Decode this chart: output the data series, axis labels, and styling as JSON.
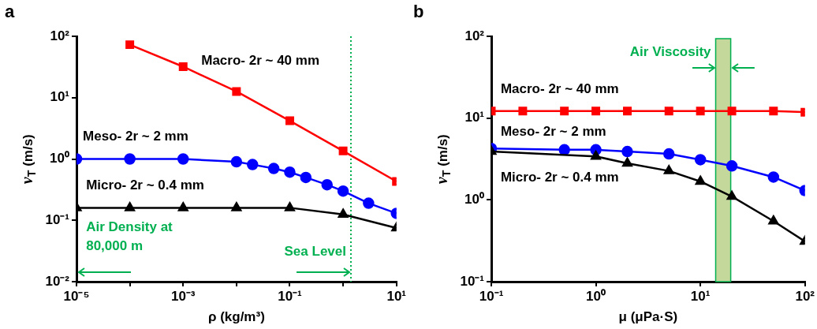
{
  "chart_data": [
    {
      "type": "line",
      "title": "a",
      "xlabel": "ρ (kg/m³)",
      "ylabel": "v$_{T}$ (m/s)",
      "log": "xy",
      "grid": false,
      "xlim": [
        1e-05,
        10
      ],
      "ylim": [
        0.01,
        100
      ],
      "xticks": [
        {
          "value": 1e-05,
          "label": "10⁻⁵"
        },
        {
          "value": 0.0001,
          "label": null
        },
        {
          "value": 0.001,
          "label": "10⁻³"
        },
        {
          "value": 0.01,
          "label": null
        },
        {
          "value": 0.1,
          "label": "10⁻¹"
        },
        {
          "value": 1,
          "label": null
        },
        {
          "value": 10,
          "label": "10¹"
        }
      ],
      "yticks": [
        {
          "value": 0.01,
          "label": "10⁻²"
        },
        {
          "value": 0.1,
          "label": "10⁻¹"
        },
        {
          "value": 1,
          "label": "10⁰"
        },
        {
          "value": 10,
          "label": "10¹"
        },
        {
          "value": 100,
          "label": "10²"
        }
      ],
      "series": [
        {
          "name": "Macro- 2r ~ 40 mm",
          "color": "#ff0000",
          "marker": "square",
          "x": [
            0.0001,
            0.001,
            0.01,
            0.1,
            1,
            10
          ],
          "values": [
            73,
            32,
            12.6,
            4.2,
            1.35,
            0.43
          ]
        },
        {
          "name": "Meso- 2r ~ 2 mm",
          "color": "#0000ff",
          "marker": "circle",
          "x": [
            1e-05,
            0.0001,
            0.001,
            0.01,
            0.02,
            0.05,
            0.1,
            0.2,
            0.5,
            1,
            3,
            10
          ],
          "values": [
            1.0,
            1.0,
            1.0,
            0.9,
            0.81,
            0.7,
            0.61,
            0.5,
            0.38,
            0.3,
            0.19,
            0.13
          ]
        },
        {
          "name": "Micro- 2r ~ 0.4 mm",
          "color": "#000000",
          "marker": "triangle",
          "x": [
            1e-05,
            0.0001,
            0.001,
            0.01,
            0.1,
            1,
            10
          ],
          "values": [
            0.16,
            0.16,
            0.16,
            0.16,
            0.16,
            0.125,
            0.075
          ]
        }
      ],
      "ref_lines": [
        {
          "axis": "x",
          "value": 1.4,
          "label": "Sea Level",
          "color": "#00b050",
          "line_style": "dotted"
        }
      ],
      "annotations": [
        "Air Density at\n80,000 m"
      ]
    },
    {
      "type": "line",
      "title": "b",
      "xlabel": "μ (μPa·S)",
      "ylabel": "v$_{T}$ (m/s)",
      "log": "xy",
      "grid": false,
      "xlim": [
        0.1,
        100
      ],
      "ylim": [
        0.1,
        100
      ],
      "xticks": [
        {
          "value": 0.1,
          "label": "10⁻¹"
        },
        {
          "value": 1,
          "label": "10⁰"
        },
        {
          "value": 10,
          "label": "10¹"
        },
        {
          "value": 100,
          "label": "10²"
        }
      ],
      "yticks": [
        {
          "value": 0.1,
          "label": "10⁻¹"
        },
        {
          "value": 1,
          "label": "10⁰"
        },
        {
          "value": 10,
          "label": "10¹"
        },
        {
          "value": 100,
          "label": "10²"
        }
      ],
      "series": [
        {
          "name": "Macro- 2r ~ 40 mm",
          "color": "#ff0000",
          "marker": "square",
          "x": [
            0.1,
            0.2,
            0.5,
            1,
            2,
            5,
            10,
            20,
            50,
            100
          ],
          "values": [
            12.2,
            12.2,
            12.2,
            12.2,
            12.2,
            12.2,
            12.2,
            12.2,
            12.2,
            11.8
          ]
        },
        {
          "name": "Meso- 2r ~ 2 mm",
          "color": "#0000ff",
          "marker": "circle",
          "x": [
            0.1,
            0.5,
            1,
            2,
            5,
            10,
            20,
            50,
            100
          ],
          "values": [
            4.25,
            4.1,
            4.1,
            3.9,
            3.65,
            3.1,
            2.6,
            1.9,
            1.3
          ]
        },
        {
          "name": "Micro- 2r ~ 0.4 mm",
          "color": "#000000",
          "marker": "triangle",
          "x": [
            0.1,
            1,
            2,
            5,
            10,
            20,
            50,
            100
          ],
          "values": [
            3.9,
            3.4,
            2.8,
            2.26,
            1.68,
            1.1,
            0.55,
            0.31
          ]
        }
      ],
      "bands": [
        {
          "axis": "x",
          "from": 14,
          "to": 19.5,
          "label": "Air Viscosity",
          "color": "#c4d89c"
        }
      ]
    }
  ]
}
